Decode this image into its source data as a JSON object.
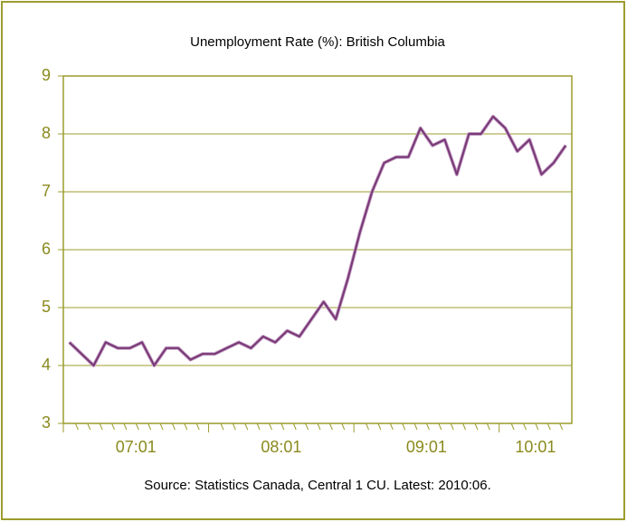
{
  "chart_data": {
    "type": "line",
    "title": "Unemployment Rate (%): British Columbia",
    "source": "Source: Statistics Canada, Central 1 CU. Latest: 2010:06.",
    "categories": [
      "07:01",
      null,
      null,
      null,
      null,
      null,
      null,
      null,
      null,
      null,
      null,
      null,
      "08:01",
      null,
      null,
      null,
      null,
      null,
      null,
      null,
      null,
      null,
      null,
      null,
      "09:01",
      null,
      null,
      null,
      null,
      null,
      null,
      null,
      null,
      null,
      null,
      null,
      "10:01",
      null,
      null,
      null,
      null,
      null
    ],
    "series": [
      {
        "name": "Unemployment Rate",
        "color": "#7a3a78",
        "values": [
          4.4,
          4.2,
          4.0,
          4.4,
          4.3,
          4.3,
          4.4,
          4.0,
          4.3,
          4.3,
          4.1,
          4.2,
          4.2,
          4.3,
          4.4,
          4.3,
          4.5,
          4.4,
          4.6,
          4.5,
          4.8,
          5.1,
          4.8,
          5.5,
          6.3,
          7.0,
          7.5,
          7.6,
          7.6,
          8.1,
          7.8,
          7.9,
          7.3,
          8.0,
          8.0,
          8.3,
          8.1,
          7.7,
          7.9,
          7.3,
          7.5,
          7.8
        ]
      }
    ],
    "ylim": [
      3,
      9
    ],
    "yticks": [
      3,
      4,
      5,
      6,
      7,
      8,
      9
    ],
    "grid": true
  }
}
